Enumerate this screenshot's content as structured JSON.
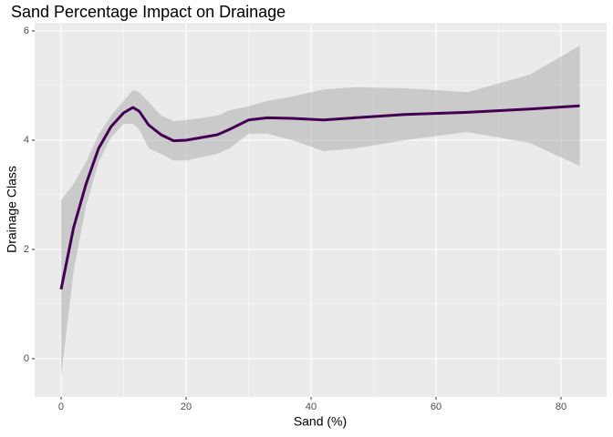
{
  "chart_data": {
    "type": "smooth",
    "title": "Sand Percentage Impact on Drainage",
    "x_label": "Sand (%)",
    "y_label": "Drainage Class",
    "x": [
      0,
      2,
      4,
      6,
      8,
      10,
      11.5,
      12.5,
      14,
      16,
      18,
      20,
      22,
      25,
      27,
      30,
      33,
      37,
      42,
      47,
      55,
      65,
      75,
      83
    ],
    "y": [
      1.27,
      2.4,
      3.2,
      3.85,
      4.25,
      4.5,
      4.6,
      4.53,
      4.28,
      4.1,
      3.99,
      4.0,
      4.04,
      4.1,
      4.2,
      4.37,
      4.41,
      4.4,
      4.37,
      4.41,
      4.47,
      4.51,
      4.57,
      4.63
    ],
    "ymin": [
      -0.33,
      1.6,
      2.8,
      3.6,
      4.05,
      4.3,
      4.3,
      4.2,
      3.85,
      3.75,
      3.63,
      3.63,
      3.68,
      3.75,
      3.85,
      4.12,
      4.12,
      4.0,
      3.8,
      3.85,
      4.0,
      4.15,
      3.95,
      3.53
    ],
    "ymax": [
      2.9,
      3.2,
      3.6,
      4.1,
      4.45,
      4.72,
      4.92,
      4.88,
      4.7,
      4.45,
      4.35,
      4.37,
      4.4,
      4.45,
      4.55,
      4.62,
      4.72,
      4.8,
      4.93,
      4.97,
      4.95,
      4.88,
      5.2,
      5.73
    ],
    "color": "#440154",
    "band_color": "#999999",
    "xlim": [
      -4.23,
      87.3
    ],
    "ylim": [
      -0.7,
      6.15
    ],
    "xticks": [
      0,
      20,
      40,
      60,
      80
    ],
    "yticks": [
      0,
      2,
      4,
      6
    ],
    "grid": true
  }
}
